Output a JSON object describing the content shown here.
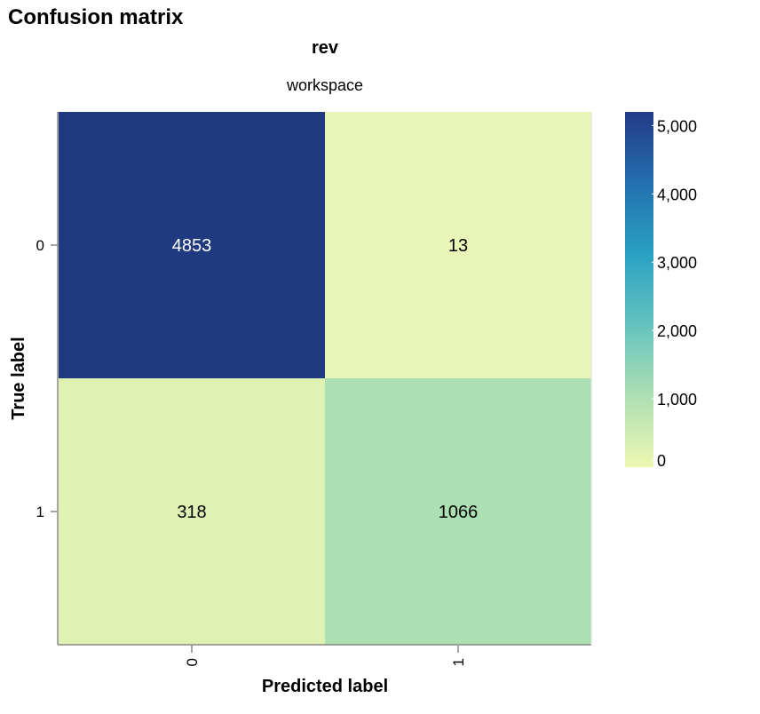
{
  "chart_data": {
    "type": "heatmap",
    "title": "Confusion matrix",
    "facet_title": "rev",
    "subtitle": "workspace",
    "xlabel": "Predicted label",
    "ylabel": "True label",
    "x_categories": [
      "0",
      "1"
    ],
    "y_categories": [
      "0",
      "1"
    ],
    "cells": [
      {
        "true_label": "0",
        "predicted_label": "0",
        "value": 4853,
        "label": "4853"
      },
      {
        "true_label": "0",
        "predicted_label": "1",
        "value": 13,
        "label": "13"
      },
      {
        "true_label": "1",
        "predicted_label": "0",
        "value": 318,
        "label": "318"
      },
      {
        "true_label": "1",
        "predicted_label": "1",
        "value": 1066,
        "label": "1066"
      }
    ],
    "color_scale": {
      "scheme": "yellow-green-blue",
      "domain": [
        0,
        5000
      ],
      "legend_ticks": [
        {
          "value": 0,
          "label": "0"
        },
        {
          "value": 1000,
          "label": "1,000"
        },
        {
          "value": 2000,
          "label": "2,000"
        },
        {
          "value": 3000,
          "label": "3,000"
        },
        {
          "value": 4000,
          "label": "4,000"
        },
        {
          "value": 5000,
          "label": "5,000"
        }
      ],
      "legend_placement": "right"
    },
    "colors": {
      "cell_4853": "#1f3a80",
      "cell_13": "#e9f6b8",
      "cell_318": "#dff2b2",
      "cell_1066": "#acdfb2"
    }
  }
}
